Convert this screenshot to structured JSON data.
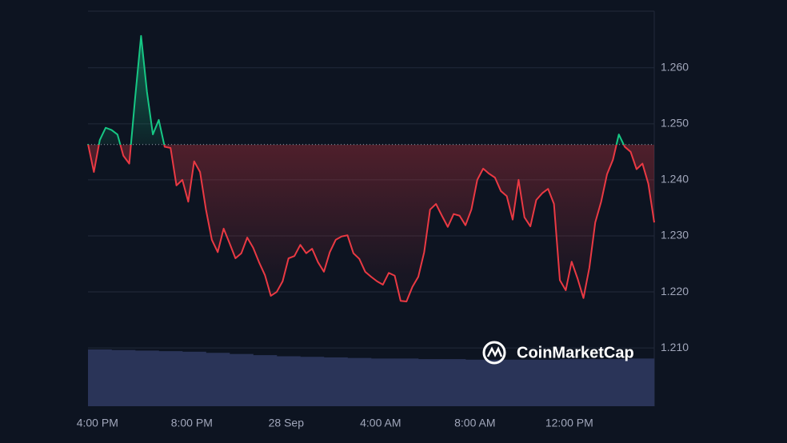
{
  "chart_data": {
    "type": "line",
    "values": [
      1.2464,
      1.2414,
      1.2471,
      1.2493,
      1.2489,
      1.2481,
      1.2443,
      1.2429,
      1.2547,
      1.2657,
      1.2557,
      1.2481,
      1.2507,
      1.2459,
      1.2457,
      1.239,
      1.24,
      1.2361,
      1.2433,
      1.2414,
      1.2347,
      1.2293,
      1.2271,
      1.2313,
      1.2287,
      1.226,
      1.2269,
      1.2297,
      1.2279,
      1.2253,
      1.223,
      1.2193,
      1.22,
      1.2219,
      1.226,
      1.2264,
      1.2284,
      1.2269,
      1.2277,
      1.2253,
      1.2236,
      1.2271,
      1.2293,
      1.2299,
      1.2301,
      1.2269,
      1.2259,
      1.2236,
      1.2227,
      1.2219,
      1.2213,
      1.2234,
      1.2229,
      1.2184,
      1.2183,
      1.2209,
      1.2227,
      1.2271,
      1.2347,
      1.2357,
      1.2336,
      1.2316,
      1.2339,
      1.2336,
      1.2319,
      1.2347,
      1.24,
      1.242,
      1.2411,
      1.2404,
      1.238,
      1.2371,
      1.2329,
      1.24,
      1.2333,
      1.2317,
      1.2364,
      1.2376,
      1.2384,
      1.2357,
      1.2221,
      1.2203,
      1.2254,
      1.2224,
      1.2189,
      1.2243,
      1.2324,
      1.2361,
      1.241,
      1.2436,
      1.2481,
      1.2459,
      1.245,
      1.2419,
      1.2429,
      1.2393,
      1.2324
    ],
    "baseline": 1.2463,
    "up_color": "#16c784",
    "down_color": "#ea3943",
    "xlim": [
      0,
      96
    ],
    "xticks": [
      {
        "value": 1.6,
        "label": "4:00 PM"
      },
      {
        "value": 17.6,
        "label": "8:00 PM"
      },
      {
        "value": 33.6,
        "label": "28 Sep"
      },
      {
        "value": 49.6,
        "label": "4:00 AM"
      },
      {
        "value": 65.6,
        "label": "8:00 AM"
      },
      {
        "value": 81.6,
        "label": "12:00 PM"
      }
    ],
    "ylim": [
      1.1996,
      1.2701
    ],
    "yticks": [
      {
        "value": 1.21,
        "label": "1.210"
      },
      {
        "value": 1.22,
        "label": "1.220"
      },
      {
        "value": 1.23,
        "label": "1.230"
      },
      {
        "value": 1.24,
        "label": "1.240"
      },
      {
        "value": 1.25,
        "label": "1.250"
      },
      {
        "value": 1.26,
        "label": "1.260"
      }
    ],
    "grid": true,
    "volume": {
      "color": "#2a3458",
      "vlim": [
        0,
        100
      ],
      "values": [
        100,
        99,
        98,
        97,
        96,
        94,
        92,
        90,
        88,
        87,
        86,
        85,
        84,
        84,
        83,
        83,
        82,
        82,
        82,
        82,
        83,
        83,
        83,
        84
      ]
    },
    "watermark": "CoinMarketCap"
  }
}
